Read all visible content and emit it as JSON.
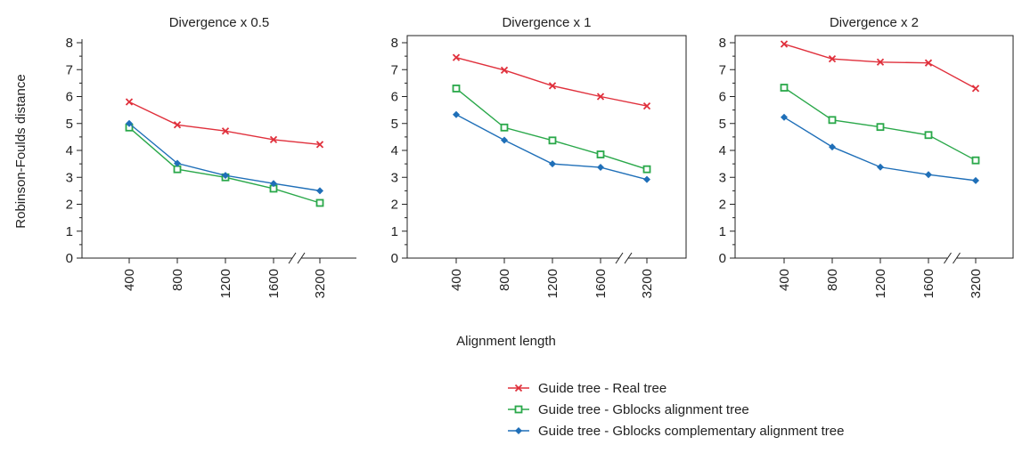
{
  "colors": {
    "real": "#e0303c",
    "gblocks": "#2aa84a",
    "complementary": "#1f6fb8",
    "axis": "#222222"
  },
  "figure": {
    "ylabel": "Robinson-Foulds distance",
    "xlabel": "Alignment length"
  },
  "chart_data": [
    {
      "type": "line",
      "title": "Divergence x 0.5",
      "categories": [
        "400",
        "800",
        "1200",
        "1600",
        "3200"
      ],
      "axis_break": "between 1600 and 3200",
      "ylim": [
        0,
        8
      ],
      "yticks": [
        "0",
        "1",
        "2",
        "3",
        "4",
        "5",
        "6",
        "7",
        "8"
      ],
      "series": [
        {
          "name": "Guide tree - Real tree",
          "marker": "x",
          "values": [
            5.8,
            4.95,
            4.72,
            4.4,
            4.22
          ]
        },
        {
          "name": "Guide tree - Gblocks alignment tree",
          "marker": "square",
          "values": [
            4.85,
            3.3,
            3.0,
            2.58,
            2.05
          ]
        },
        {
          "name": "Guide tree - Gblocks complementary alignment tree",
          "marker": "diamond",
          "values": [
            5.0,
            3.52,
            3.07,
            2.77,
            2.5
          ]
        }
      ]
    },
    {
      "type": "line",
      "title": "Divergence x 1",
      "categories": [
        "400",
        "800",
        "1200",
        "1600",
        "3200"
      ],
      "axis_break": "between 1600 and 3200",
      "ylim": [
        0,
        8
      ],
      "yticks": [
        "0",
        "1",
        "2",
        "3",
        "4",
        "5",
        "6",
        "7",
        "8"
      ],
      "series": [
        {
          "name": "Guide tree - Real tree",
          "marker": "x",
          "values": [
            7.45,
            6.98,
            6.4,
            6.0,
            5.65
          ]
        },
        {
          "name": "Guide tree - Gblocks alignment tree",
          "marker": "square",
          "values": [
            6.3,
            4.85,
            4.37,
            3.85,
            3.3
          ]
        },
        {
          "name": "Guide tree - Gblocks complementary alignment tree",
          "marker": "diamond",
          "values": [
            5.33,
            4.38,
            3.5,
            3.37,
            2.92
          ]
        }
      ]
    },
    {
      "type": "line",
      "title": "Divergence x 2",
      "categories": [
        "400",
        "800",
        "1200",
        "1600",
        "3200"
      ],
      "axis_break": "between 1600 and 3200",
      "ylim": [
        0,
        8
      ],
      "yticks": [
        "0",
        "1",
        "2",
        "3",
        "4",
        "5",
        "6",
        "7",
        "8"
      ],
      "series": [
        {
          "name": "Guide tree - Real tree",
          "marker": "x",
          "values": [
            7.95,
            7.4,
            7.28,
            7.25,
            6.3
          ]
        },
        {
          "name": "Guide tree - Gblocks alignment tree",
          "marker": "square",
          "values": [
            6.33,
            5.13,
            4.87,
            4.57,
            3.63
          ]
        },
        {
          "name": "Guide tree - Gblocks complementary alignment tree",
          "marker": "diamond",
          "values": [
            5.23,
            4.13,
            3.38,
            3.1,
            2.88
          ]
        }
      ]
    }
  ],
  "legend": {
    "placement": "bottom-right",
    "items": [
      {
        "label": "Guide tree - Real tree",
        "color_key": "real",
        "marker": "x"
      },
      {
        "label": "Guide tree - Gblocks alignment tree",
        "color_key": "gblocks",
        "marker": "square"
      },
      {
        "label": "Guide tree - Gblocks complementary alignment tree",
        "color_key": "complementary",
        "marker": "diamond"
      }
    ]
  }
}
